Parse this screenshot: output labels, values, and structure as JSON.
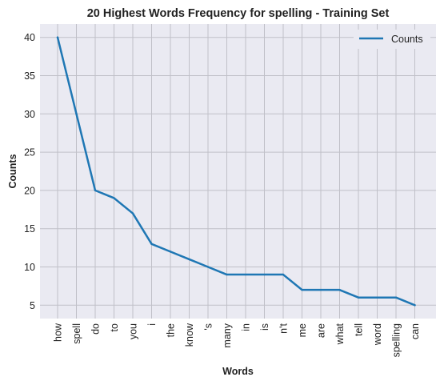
{
  "chart_data": {
    "type": "line",
    "title": "20 Highest Words Frequency for spelling - Training Set",
    "xlabel": "Words",
    "ylabel": "Counts",
    "categories": [
      "how",
      "spell",
      "do",
      "to",
      "you",
      "i",
      "the",
      "know",
      "'s",
      "many",
      "in",
      "is",
      "n't",
      "me",
      "are",
      "what",
      "tell",
      "word",
      "spelling",
      "can"
    ],
    "series": [
      {
        "name": "Counts",
        "color": "#1f77b4",
        "values": [
          40,
          30,
          20,
          19,
          17,
          13,
          12,
          11,
          10,
          9,
          9,
          9,
          9,
          7,
          7,
          7,
          6,
          6,
          6,
          5
        ]
      }
    ],
    "yticks": [
      5,
      10,
      15,
      20,
      25,
      30,
      35,
      40
    ],
    "ylim": [
      3.25,
      41.75
    ],
    "grid": true,
    "legend_position": "top-right",
    "background_color": "#eaeaf2",
    "grid_color": "#c0c0c8"
  }
}
